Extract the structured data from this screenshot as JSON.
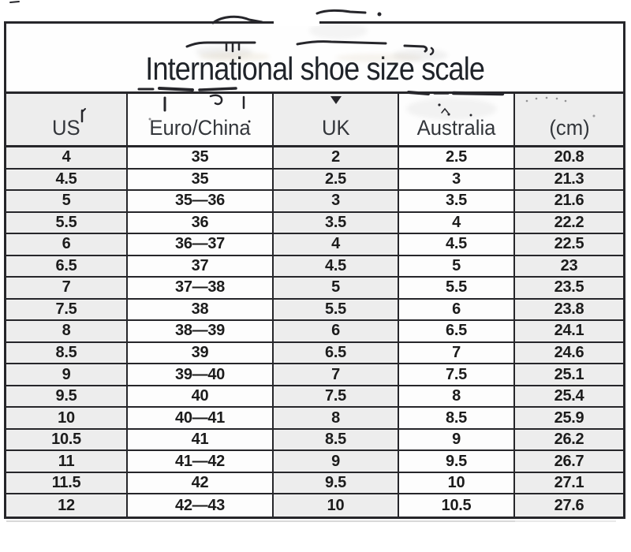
{
  "chart_data": {
    "type": "table",
    "title": "International shoe size scale",
    "columns": [
      "US",
      "Euro/China",
      "UK",
      "Australia",
      "(cm)"
    ],
    "rows": [
      [
        "4",
        "35",
        "2",
        "2.5",
        "20.8"
      ],
      [
        "4.5",
        "35",
        "2.5",
        "3",
        "21.3"
      ],
      [
        "5",
        "35—36",
        "3",
        "3.5",
        "21.6"
      ],
      [
        "5.5",
        "36",
        "3.5",
        "4",
        "22.2"
      ],
      [
        "6",
        "36—37",
        "4",
        "4.5",
        "22.5"
      ],
      [
        "6.5",
        "37",
        "4.5",
        "5",
        "23"
      ],
      [
        "7",
        "37—38",
        "5",
        "5.5",
        "23.5"
      ],
      [
        "7.5",
        "38",
        "5.5",
        "6",
        "23.8"
      ],
      [
        "8",
        "38—39",
        "6",
        "6.5",
        "24.1"
      ],
      [
        "8.5",
        "39",
        "6.5",
        "7",
        "24.6"
      ],
      [
        "9",
        "39—40",
        "7",
        "7.5",
        "25.1"
      ],
      [
        "9.5",
        "40",
        "7.5",
        "8",
        "25.4"
      ],
      [
        "10",
        "40—41",
        "8",
        "8.5",
        "25.9"
      ],
      [
        "10.5",
        "41",
        "8.5",
        "9",
        "26.2"
      ],
      [
        "11",
        "41—42",
        "9",
        "9.5",
        "26.7"
      ],
      [
        "11.5",
        "42",
        "9.5",
        "10",
        "27.1"
      ],
      [
        "12",
        "42—43",
        "10",
        "10.5",
        "27.6"
      ]
    ],
    "layout": {
      "grid": "on",
      "header_position": "top",
      "column_shading": [
        "gray",
        "white",
        "gray",
        "white",
        "gray"
      ]
    }
  },
  "colors": {
    "grid_line": "#26262a",
    "cell_gray": "#ededed",
    "cell_white": "#fdfdfd",
    "title_text": "#1f2329",
    "header_text": "#33363b",
    "data_text": "#1c1c1c"
  }
}
